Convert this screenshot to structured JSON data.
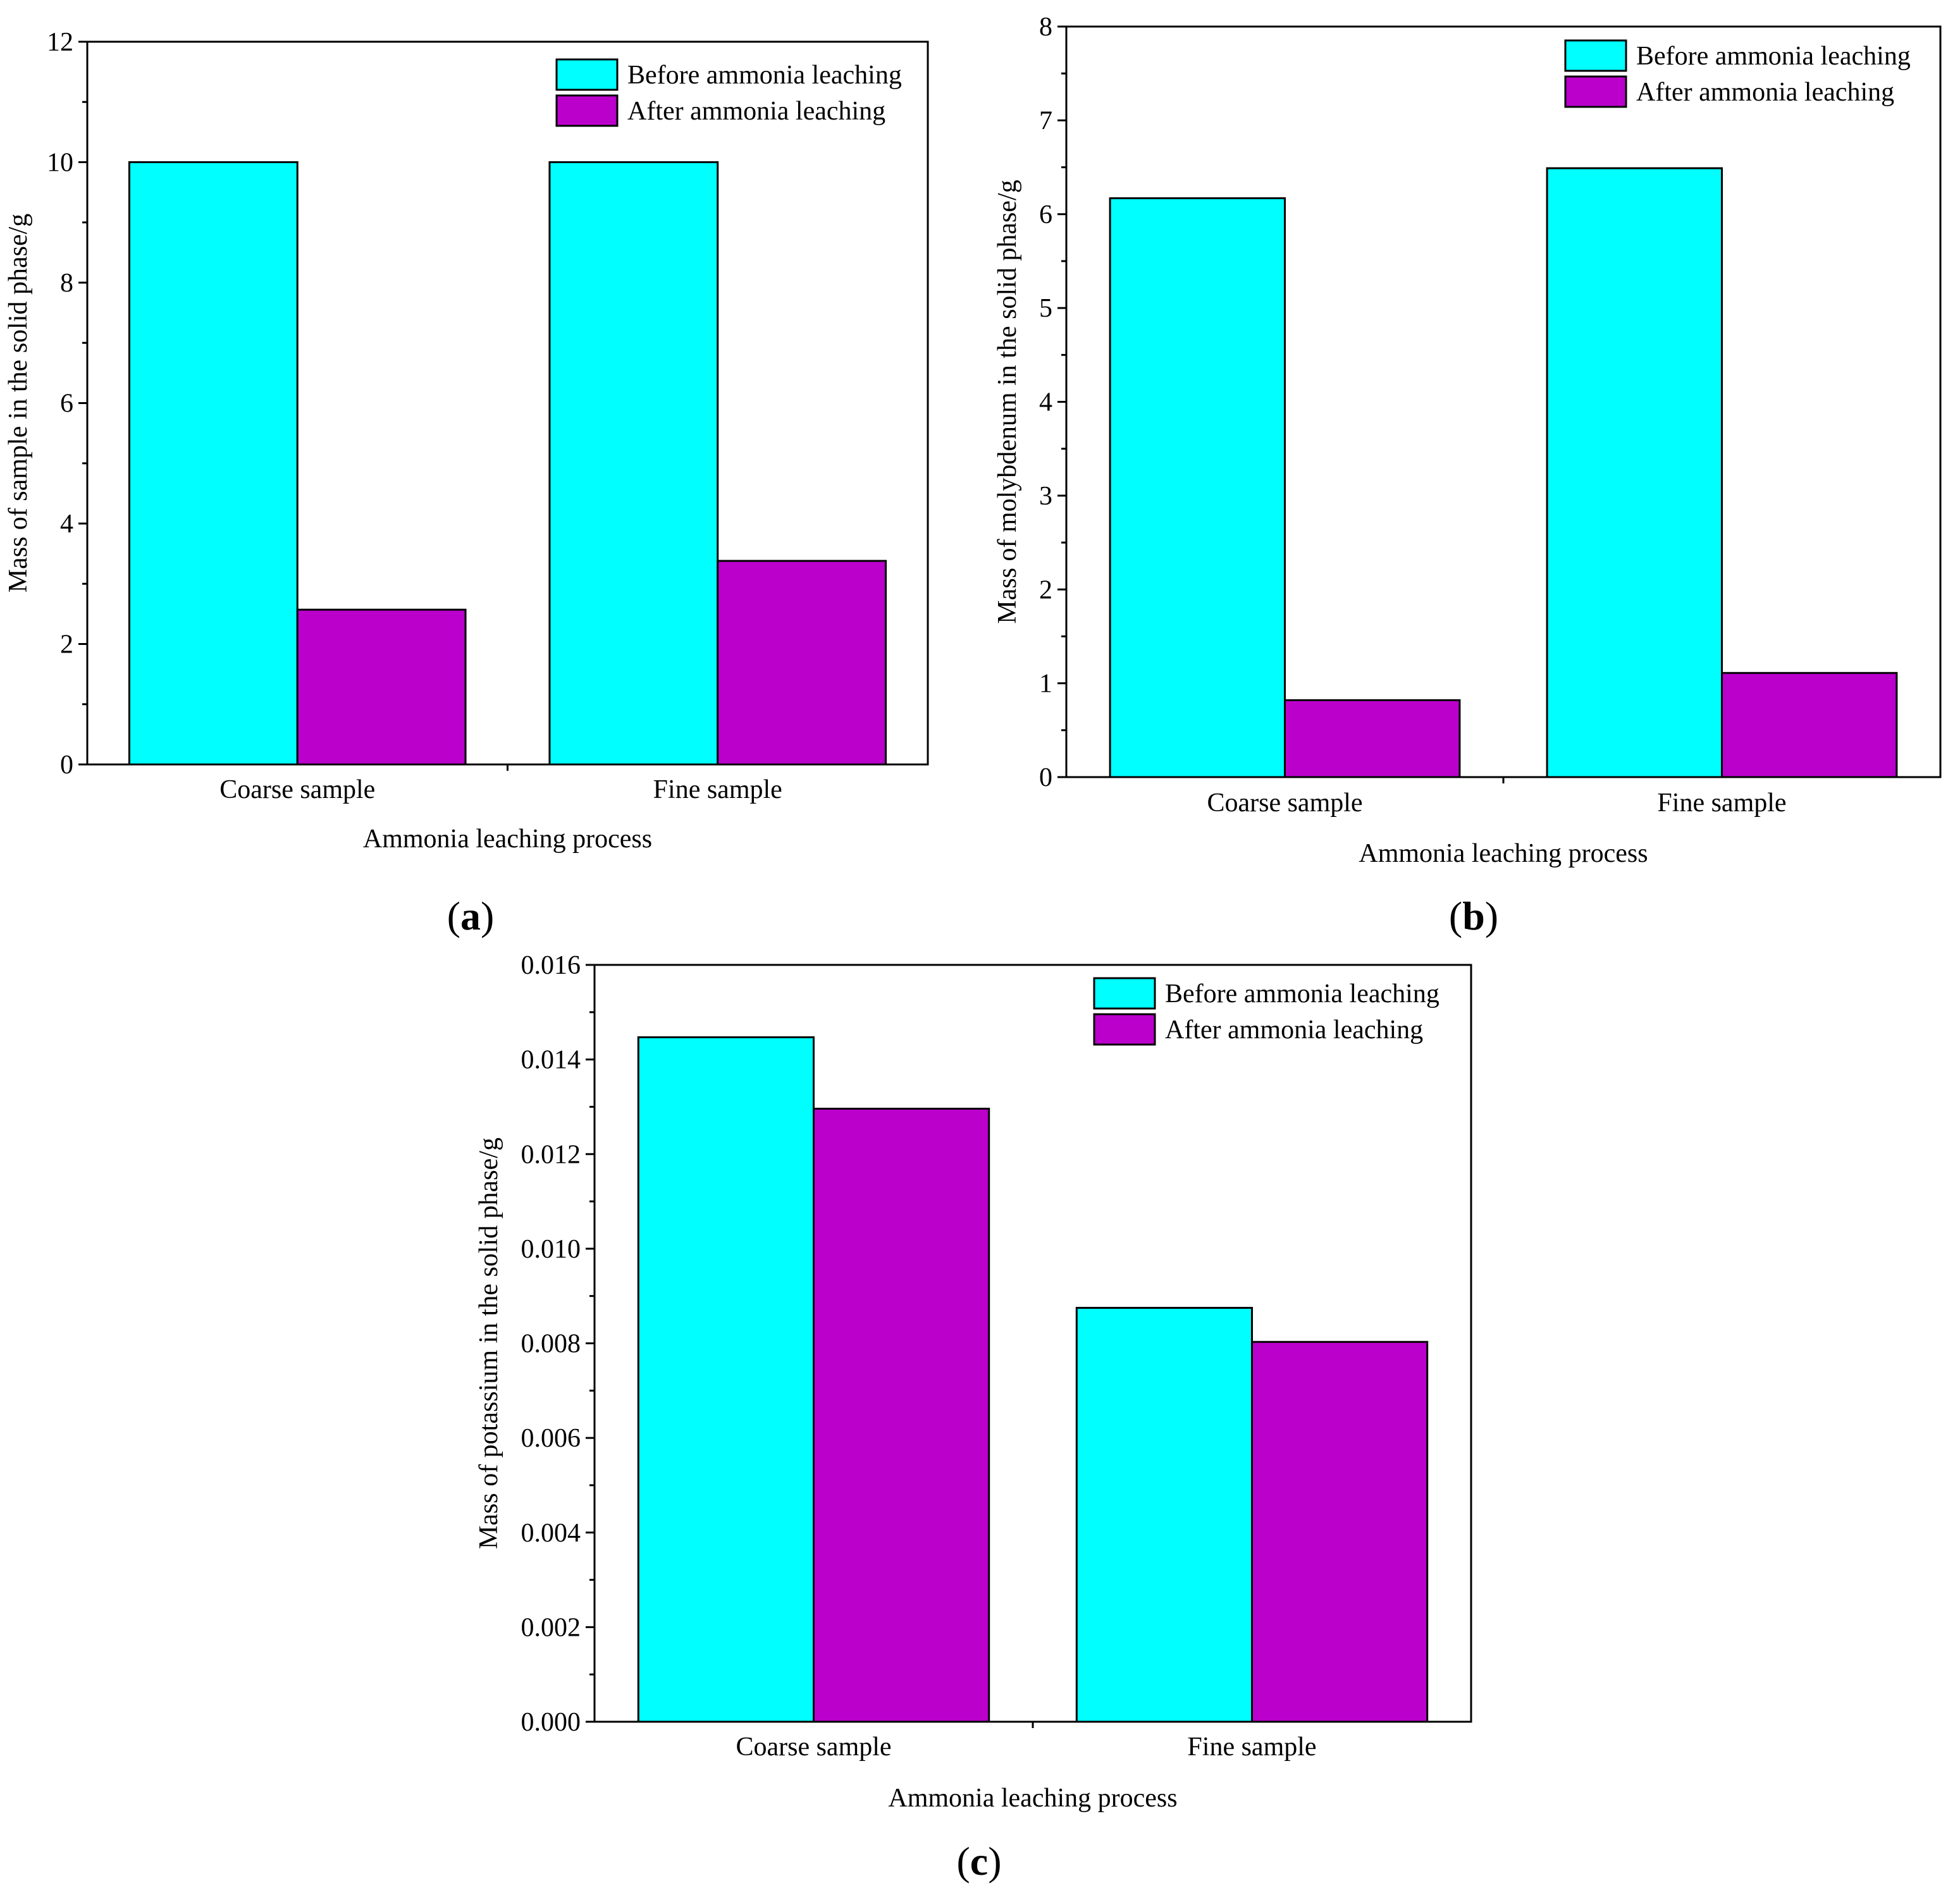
{
  "colors": {
    "before": "#00FFFF",
    "after": "#BB00CC",
    "axis": "#000000"
  },
  "panels": [
    {
      "id": "a",
      "panel_label": "a",
      "chart_data": {
        "type": "bar",
        "categories": [
          "Coarse sample",
          "Fine sample"
        ],
        "series": [
          {
            "name": "Before ammonia leaching",
            "values": [
              10.0,
              10.0
            ]
          },
          {
            "name": "After ammonia leaching",
            "values": [
              2.57,
              3.38
            ]
          }
        ],
        "xlabel": "Ammonia leaching process",
        "ylabel": "Mass of sample in the solid phase/g",
        "ylim": [
          0,
          12
        ],
        "yticks": [
          0,
          2,
          4,
          6,
          8,
          10,
          12
        ],
        "ytick_labels": [
          "0",
          "2",
          "4",
          "6",
          "8",
          "10",
          "12"
        ],
        "legend_position": "top-right",
        "grid": false
      }
    },
    {
      "id": "b",
      "panel_label": "b",
      "chart_data": {
        "type": "bar",
        "categories": [
          "Coarse sample",
          "Fine sample"
        ],
        "series": [
          {
            "name": "Before ammonia leaching",
            "values": [
              6.17,
              6.49
            ]
          },
          {
            "name": "After ammonia leaching",
            "values": [
              0.82,
              1.11
            ]
          }
        ],
        "xlabel": "Ammonia leaching process",
        "ylabel": "Mass of molybdenum in the solid phase/g",
        "ylim": [
          0,
          8
        ],
        "yticks": [
          0,
          1,
          2,
          3,
          4,
          5,
          6,
          7,
          8
        ],
        "ytick_labels": [
          "0",
          "1",
          "2",
          "3",
          "4",
          "5",
          "6",
          "7",
          "8"
        ],
        "legend_position": "top-right",
        "grid": false
      }
    },
    {
      "id": "c",
      "panel_label": "c",
      "chart_data": {
        "type": "bar",
        "categories": [
          "Coarse sample",
          "Fine sample"
        ],
        "series": [
          {
            "name": "Before ammonia leaching",
            "values": [
              0.01447,
              0.00875
            ]
          },
          {
            "name": "After ammonia leaching",
            "values": [
              0.01296,
              0.00803
            ]
          }
        ],
        "xlabel": "Ammonia leaching process",
        "ylabel": "Mass of potassium in the solid phase/g",
        "ylim": [
          0,
          0.016
        ],
        "yticks": [
          0,
          0.002,
          0.004,
          0.006,
          0.008,
          0.01,
          0.012,
          0.014,
          0.016
        ],
        "ytick_labels": [
          "0.000",
          "0.002",
          "0.004",
          "0.006",
          "0.008",
          "0.010",
          "0.012",
          "0.014",
          "0.016"
        ],
        "legend_position": "top-right",
        "grid": false
      }
    }
  ]
}
